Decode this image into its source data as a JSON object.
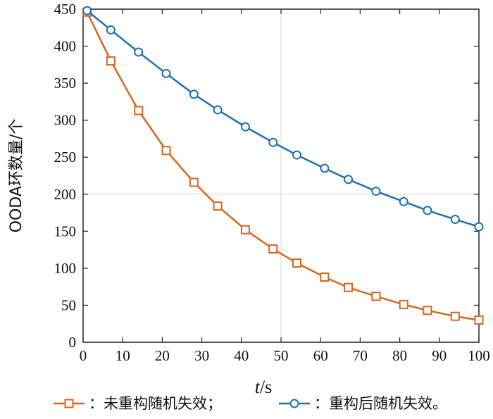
{
  "chart_data": {
    "type": "line",
    "xlabel_var": "t",
    "xlabel_unit": "/s",
    "ylabel": "OODA环数量/个",
    "xlim": [
      0,
      100
    ],
    "ylim": [
      0,
      450
    ],
    "xticks": [
      0,
      10,
      20,
      30,
      40,
      50,
      60,
      70,
      80,
      90,
      100
    ],
    "yticks": [
      0,
      50,
      100,
      150,
      200,
      250,
      300,
      350,
      400,
      450
    ],
    "grid": true,
    "legend_position": "bottom",
    "series": [
      {
        "name": "：未重构随机失效；",
        "color": "#D9651F",
        "marker": "square",
        "x": [
          1,
          7,
          14,
          21,
          28,
          34,
          41,
          48,
          54,
          61,
          67,
          74,
          81,
          87,
          94,
          100
        ],
        "y": [
          446,
          380,
          313,
          259,
          216,
          184,
          152,
          126,
          107,
          88,
          74,
          62,
          51,
          43,
          35,
          30
        ]
      },
      {
        "name": "：重构后随机失效。",
        "color": "#1F6FB0",
        "marker": "circle",
        "x": [
          1,
          7,
          14,
          21,
          28,
          34,
          41,
          48,
          54,
          61,
          67,
          74,
          81,
          87,
          94,
          100
        ],
        "y": [
          448,
          422,
          392,
          363,
          335,
          314,
          291,
          270,
          253,
          235,
          220,
          204,
          190,
          178,
          166,
          156
        ]
      }
    ]
  }
}
